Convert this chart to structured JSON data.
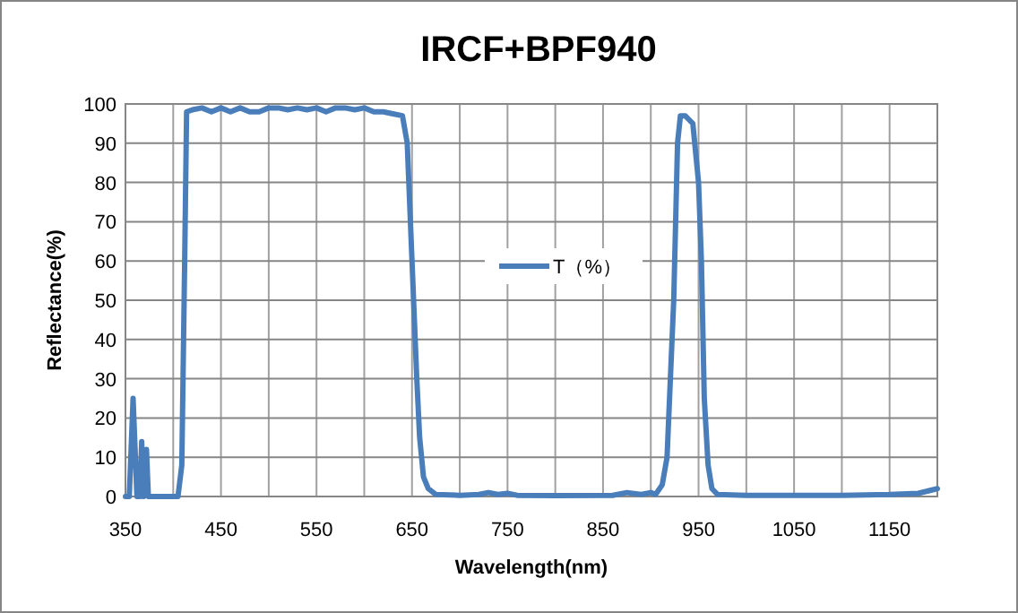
{
  "chart_data": {
    "type": "line",
    "title": "IRCF+BPF940",
    "xlabel": "Wavelength(nm)",
    "ylabel": "Reflectance(%)",
    "xlim": [
      350,
      1200
    ],
    "xticks": [
      350,
      {
        "value": 400,
        "label": null
      },
      450,
      {
        "value": 500,
        "label": null
      },
      550,
      {
        "value": 600,
        "label": null
      },
      650,
      {
        "value": 700,
        "label": null
      },
      750,
      {
        "value": 800,
        "label": null
      },
      850,
      {
        "value": 900,
        "label": null
      },
      950,
      {
        "value": 1000,
        "label": null
      },
      1050,
      {
        "value": 1100,
        "label": null
      },
      1150,
      {
        "value": 1200,
        "label": null
      }
    ],
    "ylim": [
      0,
      100
    ],
    "yticks": [
      0,
      10,
      20,
      30,
      40,
      50,
      60,
      70,
      80,
      90,
      100
    ],
    "grid": true,
    "legend": "center",
    "marker": "none",
    "line_style": "solid",
    "series": [
      {
        "name": "T（%）",
        "color": "#4a7ebb",
        "x": [
          350,
          354,
          358,
          362,
          365,
          367,
          369,
          372,
          374,
          380,
          400,
          405,
          409,
          412,
          414,
          420,
          430,
          440,
          450,
          460,
          470,
          480,
          490,
          500,
          510,
          520,
          530,
          540,
          550,
          560,
          570,
          580,
          590,
          600,
          610,
          620,
          630,
          640,
          645,
          650,
          655,
          658,
          662,
          667,
          675,
          700,
          720,
          730,
          740,
          750,
          760,
          800,
          860,
          875,
          890,
          900,
          905,
          912,
          917,
          924,
          928,
          931,
          936,
          940,
          944,
          950,
          953,
          956,
          960,
          964,
          970,
          1000,
          1100,
          1150,
          1180,
          1200
        ],
        "values": [
          0,
          0,
          25,
          0,
          0,
          14,
          0,
          12,
          0,
          0,
          0,
          0,
          8,
          60,
          98,
          98.5,
          99,
          98,
          99,
          98,
          99,
          98,
          98,
          99,
          99,
          98.5,
          99,
          98.5,
          99,
          98,
          99,
          99,
          98.5,
          99,
          98,
          98,
          97.5,
          97,
          90,
          60,
          30,
          15,
          5,
          2,
          0.5,
          0.3,
          0.5,
          1,
          0.5,
          0.8,
          0.3,
          0.2,
          0.3,
          1,
          0.5,
          1,
          0.5,
          3,
          10,
          50,
          90,
          97,
          97,
          96,
          95,
          80,
          60,
          25,
          8,
          2,
          0.5,
          0.3,
          0.3,
          0.5,
          0.8,
          2
        ]
      }
    ]
  }
}
